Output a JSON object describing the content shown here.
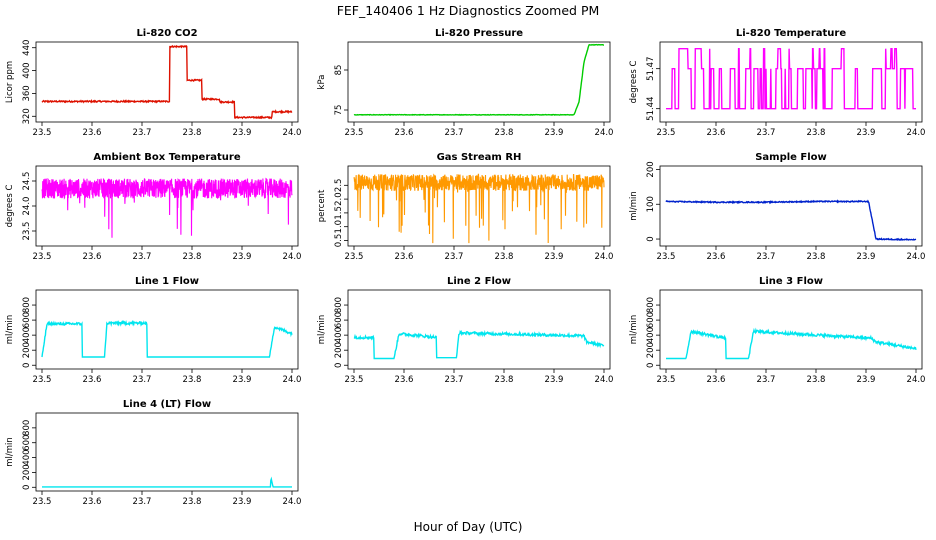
{
  "figure": {
    "title": "FEF_140406  1 Hz Diagnostics Zoomed PM",
    "xlabel": "Hour of Day (UTC)"
  },
  "chart_data": [
    {
      "id": "co2",
      "type": "line",
      "title": "Li-820 CO2",
      "ylabel": "Licor ppm",
      "color": "#dd1100",
      "xlim": [
        23.5,
        24.0
      ],
      "ylim": [
        310,
        450
      ],
      "x_ticks": [
        "23.5",
        "23.6",
        "23.7",
        "23.8",
        "23.9",
        "24.0"
      ],
      "y_ticks": [
        "320",
        "360",
        "400",
        "440"
      ],
      "series": [
        {
          "x": [
            23.5,
            23.755,
            23.755,
            23.79,
            23.79,
            23.82,
            23.82,
            23.855,
            23.855,
            23.885,
            23.885,
            23.96,
            23.96,
            24.0
          ],
          "y": [
            346,
            346,
            442,
            442,
            383,
            383,
            350,
            350,
            345,
            345,
            318,
            318,
            328,
            328
          ]
        }
      ]
    },
    {
      "id": "pressure",
      "type": "line",
      "title": "Li-820 Pressure",
      "ylabel": "kPa",
      "color": "#00cc00",
      "xlim": [
        23.5,
        24.0
      ],
      "ylim": [
        72,
        92
      ],
      "x_ticks": [
        "23.5",
        "23.6",
        "23.7",
        "23.8",
        "23.9",
        "24.0"
      ],
      "y_ticks": [
        "75",
        "85"
      ],
      "series": [
        {
          "x": [
            23.5,
            23.94,
            23.95,
            23.96,
            23.97,
            24.0
          ],
          "y": [
            73.8,
            73.8,
            77,
            87,
            91.3,
            91.3
          ]
        }
      ]
    },
    {
      "id": "temperature",
      "type": "line",
      "title": "Li-820 Temperature",
      "ylabel": "degrees C",
      "color": "#ff00ff",
      "xlim": [
        23.5,
        24.0
      ],
      "ylim": [
        51.43,
        51.49
      ],
      "x_ticks": [
        "23.5",
        "23.6",
        "23.7",
        "23.8",
        "23.9",
        "24.0"
      ],
      "y_ticks": [
        "51.44",
        "51.47"
      ],
      "series": [
        {
          "levels": [
            51.44,
            51.47,
            51.485
          ]
        }
      ]
    },
    {
      "id": "ambient",
      "type": "line",
      "title": "Ambient Box Temperature",
      "ylabel": "degrees C",
      "color": "#ff00ff",
      "xlim": [
        23.5,
        24.0
      ],
      "ylim": [
        23.2,
        24.8
      ],
      "x_ticks": [
        "23.5",
        "23.6",
        "23.7",
        "23.8",
        "23.9",
        "24.0"
      ],
      "y_ticks": [
        "23.5",
        "24.0",
        "24.5"
      ],
      "series": [
        {
          "mean": 24.35,
          "range": [
            23.3,
            24.75
          ]
        }
      ]
    },
    {
      "id": "rh",
      "type": "line",
      "title": "Gas Stream RH",
      "ylabel": "percent",
      "color": "#ff9900",
      "xlim": [
        23.5,
        24.0
      ],
      "ylim": [
        0.3,
        3.2
      ],
      "x_ticks": [
        "23.5",
        "23.6",
        "23.7",
        "23.8",
        "23.9",
        "24.0"
      ],
      "y_ticks": [
        "0.5",
        "1.0",
        "1.5",
        "2.0",
        "2.5"
      ],
      "series": [
        {
          "mean": 2.6,
          "range": [
            0.4,
            3.0
          ]
        }
      ]
    },
    {
      "id": "sample",
      "type": "line",
      "title": "Sample Flow",
      "ylabel": "ml/min",
      "color": "#0022cc",
      "xlim": [
        23.5,
        24.0
      ],
      "ylim": [
        -20,
        210
      ],
      "x_ticks": [
        "23.5",
        "23.6",
        "23.7",
        "23.8",
        "23.9",
        "24.0"
      ],
      "y_ticks": [
        "0",
        "100",
        "200"
      ],
      "series": [
        {
          "x": [
            23.5,
            23.6,
            23.7,
            23.8,
            23.905,
            23.92,
            24.0
          ],
          "y": [
            108,
            106,
            106,
            108,
            108,
            0,
            -2
          ]
        }
      ]
    },
    {
      "id": "line1",
      "type": "line",
      "title": "Line 1 Flow",
      "ylabel": "ml/min",
      "color": "#00e5ee",
      "xlim": [
        23.5,
        24.0
      ],
      "ylim": [
        -50,
        1000
      ],
      "x_ticks": [
        "23.5",
        "23.6",
        "23.7",
        "23.8",
        "23.9",
        "24.0"
      ],
      "y_ticks": [
        "0",
        "200",
        "400",
        "600",
        "800"
      ],
      "series": [
        {
          "x": [
            23.5,
            23.51,
            23.58,
            23.58,
            23.625,
            23.63,
            23.71,
            23.71,
            23.955,
            23.965,
            24.0
          ],
          "y": [
            110,
            550,
            550,
            110,
            110,
            560,
            560,
            110,
            110,
            510,
            420
          ]
        }
      ]
    },
    {
      "id": "line2",
      "type": "line",
      "title": "Line 2 Flow",
      "ylabel": "ml/min",
      "color": "#00e5ee",
      "xlim": [
        23.5,
        24.0
      ],
      "ylim": [
        -50,
        1000
      ],
      "x_ticks": [
        "23.5",
        "23.6",
        "23.7",
        "23.8",
        "23.9",
        "24.0"
      ],
      "y_ticks": [
        "0",
        "200",
        "400",
        "600",
        "800"
      ],
      "series": [
        {
          "x": [
            23.5,
            23.54,
            23.54,
            23.58,
            23.59,
            23.665,
            23.665,
            23.705,
            23.71,
            23.96,
            23.965,
            24.0
          ],
          "y": [
            370,
            370,
            90,
            90,
            420,
            370,
            100,
            100,
            430,
            390,
            310,
            260
          ]
        }
      ]
    },
    {
      "id": "line3",
      "type": "line",
      "title": "Line 3 Flow",
      "ylabel": "ml/min",
      "color": "#00e5ee",
      "xlim": [
        23.5,
        24.0
      ],
      "ylim": [
        -50,
        1000
      ],
      "x_ticks": [
        "23.5",
        "23.6",
        "23.7",
        "23.8",
        "23.9",
        "24.0"
      ],
      "y_ticks": [
        "0",
        "200",
        "400",
        "600",
        "800"
      ],
      "series": [
        {
          "x": [
            23.5,
            23.54,
            23.55,
            23.62,
            23.62,
            23.665,
            23.675,
            23.91,
            23.92,
            24.0
          ],
          "y": [
            90,
            90,
            450,
            360,
            90,
            90,
            450,
            360,
            310,
            220
          ]
        }
      ]
    },
    {
      "id": "line4",
      "type": "line",
      "title": "Line 4 (LT) Flow",
      "ylabel": "ml/min",
      "color": "#00e5ee",
      "xlim": [
        23.5,
        24.0
      ],
      "ylim": [
        -50,
        1000
      ],
      "x_ticks": [
        "23.5",
        "23.6",
        "23.7",
        "23.8",
        "23.9",
        "24.0"
      ],
      "y_ticks": [
        "0",
        "200",
        "400",
        "600",
        "800"
      ],
      "series": [
        {
          "x": [
            23.5,
            23.957,
            23.958,
            23.962,
            24.0
          ],
          "y": [
            5,
            5,
            130,
            5,
            5
          ]
        }
      ]
    }
  ]
}
